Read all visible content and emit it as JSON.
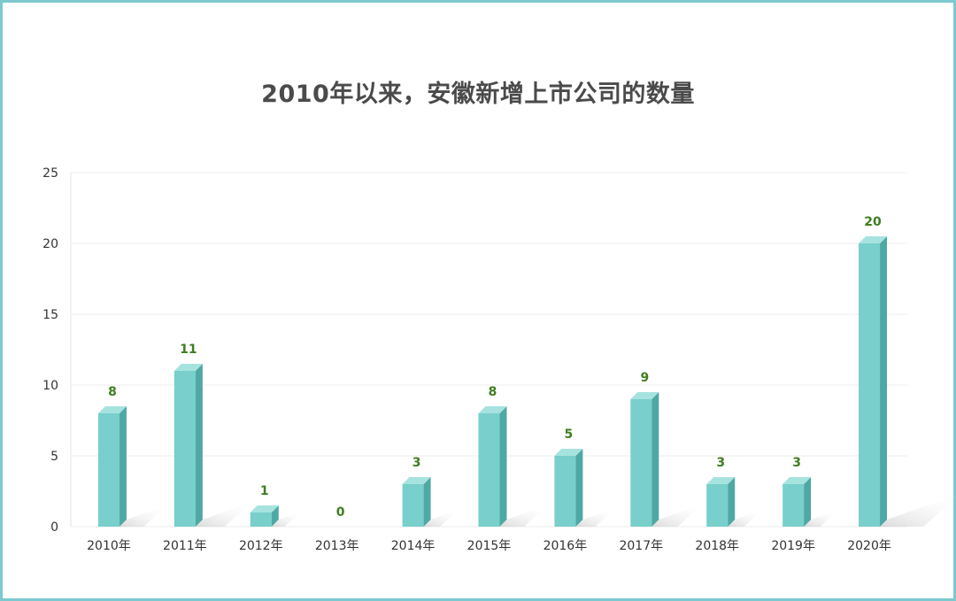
{
  "chart_data": {
    "type": "bar",
    "title": "2010年以来，安徽新增上市公司的数量",
    "categories": [
      "2010年",
      "2011年",
      "2012年",
      "2013年",
      "2014年",
      "2015年",
      "2016年",
      "2017年",
      "2018年",
      "2019年",
      "2020年"
    ],
    "values": [
      8,
      11,
      1,
      0,
      3,
      8,
      5,
      9,
      3,
      3,
      20
    ],
    "ylim": [
      0,
      25
    ],
    "yticks": [
      0,
      5,
      10,
      15,
      20,
      25
    ],
    "grid": true,
    "style": "3d-bar",
    "colors": {
      "front": "#78cfcb",
      "top": "#a6e3df",
      "side": "#4fa8a4",
      "label": "#3f7d1f",
      "shadow": "#dcdcdc"
    }
  }
}
